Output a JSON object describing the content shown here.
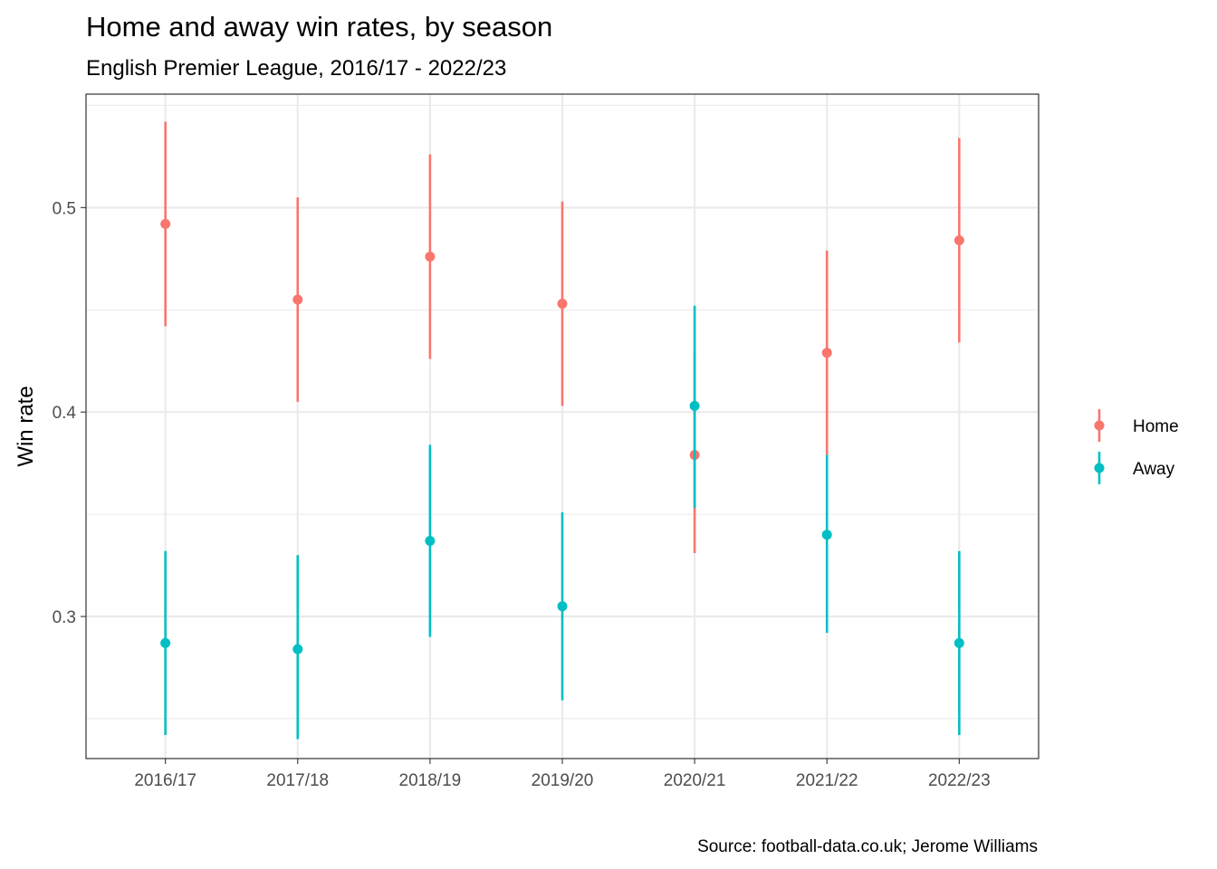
{
  "chart_data": {
    "type": "scatter",
    "title": "Home and away win rates, by season",
    "subtitle": "English Premier League, 2016/17 - 2022/23",
    "caption": "Source: football-data.co.uk; Jerome Williams",
    "xlabel": "",
    "ylabel": "Win rate",
    "categories": [
      "2016/17",
      "2017/18",
      "2018/19",
      "2019/20",
      "2020/21",
      "2021/22",
      "2022/23"
    ],
    "ylim": [
      0.2305,
      0.5555
    ],
    "y_ticks_major": [
      0.3,
      0.4,
      0.5
    ],
    "y_tick_labels": [
      "0.3",
      "0.4",
      "0.5"
    ],
    "y_ticks_minor": [
      0.25,
      0.35,
      0.45,
      0.55
    ],
    "grid": true,
    "legend_position": "right",
    "series": [
      {
        "name": "Home",
        "color": "#F8766D",
        "values": [
          0.492,
          0.455,
          0.476,
          0.453,
          0.379,
          0.429,
          0.484
        ],
        "lower": [
          0.442,
          0.405,
          0.426,
          0.403,
          0.331,
          0.379,
          0.434
        ],
        "upper": [
          0.542,
          0.505,
          0.526,
          0.503,
          0.429,
          0.479,
          0.534
        ]
      },
      {
        "name": "Away",
        "color": "#00BFC4",
        "values": [
          0.287,
          0.284,
          0.337,
          0.305,
          0.403,
          0.34,
          0.287
        ],
        "lower": [
          0.242,
          0.24,
          0.29,
          0.259,
          0.353,
          0.292,
          0.242
        ],
        "upper": [
          0.332,
          0.33,
          0.384,
          0.351,
          0.452,
          0.379,
          0.332
        ]
      }
    ]
  }
}
